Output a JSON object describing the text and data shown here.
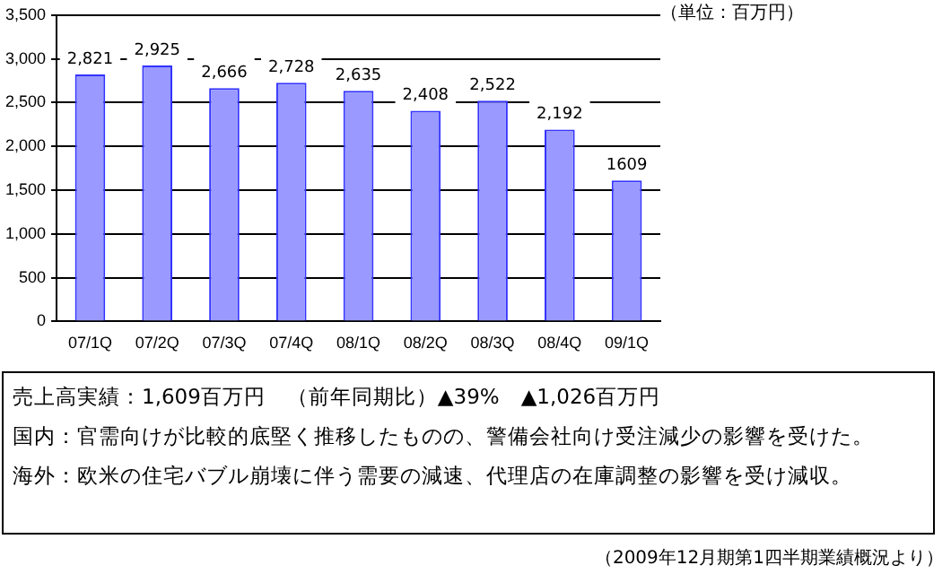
{
  "chart_data": {
    "type": "bar",
    "categories": [
      "07/1Q",
      "07/2Q",
      "07/3Q",
      "07/4Q",
      "08/1Q",
      "08/2Q",
      "08/3Q",
      "08/4Q",
      "09/1Q"
    ],
    "values": [
      2821,
      2925,
      2666,
      2728,
      2635,
      2408,
      2522,
      2192,
      1609
    ],
    "value_labels": [
      "2,821",
      "2,925",
      "2,666",
      "2,728",
      "2,635",
      "2,408",
      "2,522",
      "2,192",
      "1609"
    ],
    "color": "#9999ff",
    "ylim": [
      0,
      3500
    ],
    "yticks": [
      {
        "value": 0,
        "label": "0"
      },
      {
        "value": 500,
        "label": "500"
      },
      {
        "value": 1000,
        "label": "1,000"
      },
      {
        "value": 1500,
        "label": "1,500"
      },
      {
        "value": 2000,
        "label": "2,000"
      },
      {
        "value": 2500,
        "label": "2,500"
      },
      {
        "value": 3000,
        "label": "3,000"
      },
      {
        "value": 3500,
        "label": "3,500"
      }
    ],
    "grid": "y",
    "legend": false,
    "annotations": [
      "（単位：百万円）",
      "売上高実績：1,609百万円　（前年同期比）▲39%　▲1,026百万円",
      "国内：官需向けが比較的底堅く推移したものの、警備会社向け受注減少の影響を受けた。",
      "海外：欧米の住宅バブル崩壊に伴う需要の減速、代理店の在庫調整の影響を受け減収。",
      "（2009年12月期第1四半期業績概況より）"
    ]
  }
}
